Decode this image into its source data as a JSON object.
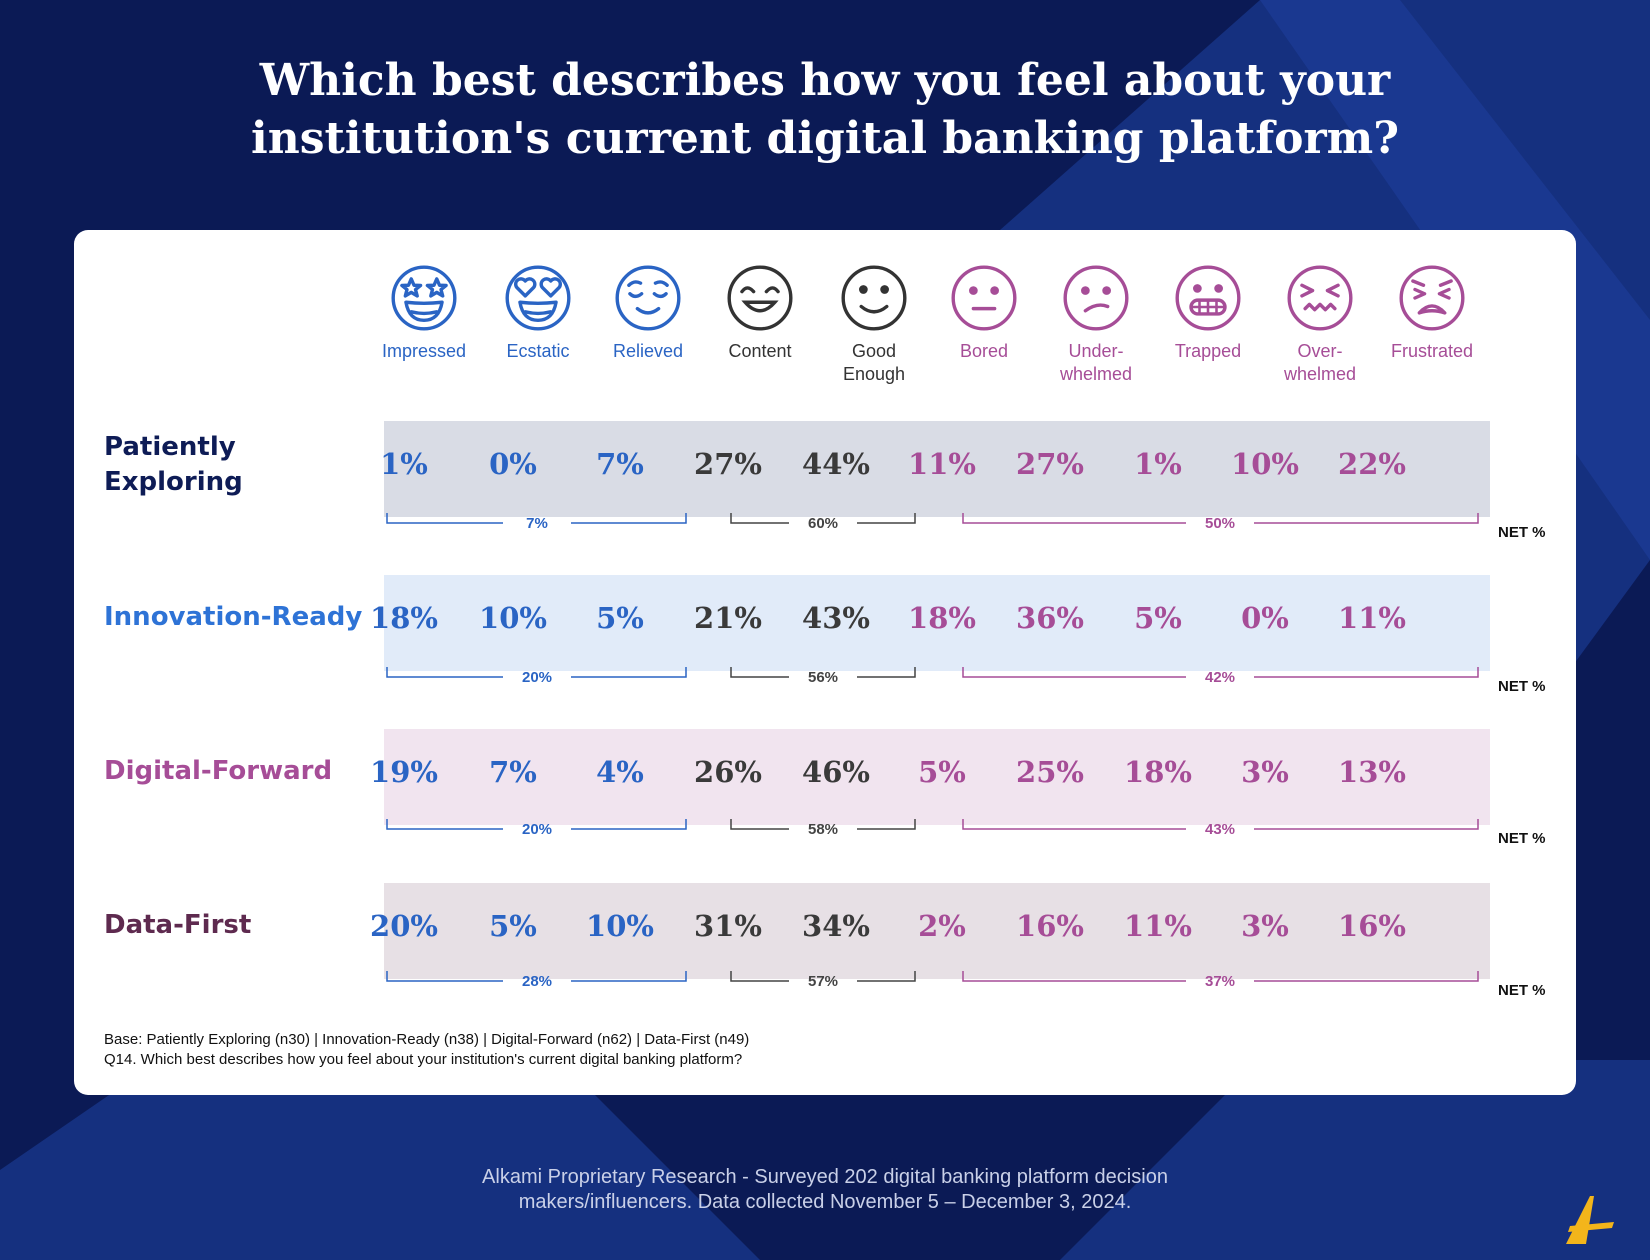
{
  "title_lines": [
    "Which best describes how you feel about your",
    "institution's current digital banking platform?"
  ],
  "colors": {
    "blue": "#2a64c4",
    "dark": "#3a3a3a",
    "purple": "#a64d97",
    "navy": "#0b1a55"
  },
  "emotions": [
    {
      "label": "Impressed",
      "icon": "star-struck-face-icon",
      "group": "blue"
    },
    {
      "label": "Ecstatic",
      "icon": "heart-eyes-face-icon",
      "group": "blue"
    },
    {
      "label": "Relieved",
      "icon": "relieved-face-icon",
      "group": "blue"
    },
    {
      "label": "Content",
      "icon": "content-face-icon",
      "group": "dark"
    },
    {
      "label": "Good\nEnough",
      "icon": "smiling-face-icon",
      "group": "dark"
    },
    {
      "label": "Bored",
      "icon": "neutral-face-icon",
      "group": "purple"
    },
    {
      "label": "Under-\nwhelmed",
      "icon": "confused-face-icon",
      "group": "purple"
    },
    {
      "label": "Trapped",
      "icon": "grimacing-face-icon",
      "group": "purple"
    },
    {
      "label": "Over-\nwhelmed",
      "icon": "confounded-face-icon",
      "group": "purple"
    },
    {
      "label": "Frustrated",
      "icon": "persevering-face-icon",
      "group": "purple"
    }
  ],
  "chart_data": {
    "type": "table",
    "title": "Which best describes how you feel about your institution's current digital banking platform?",
    "categories": [
      "Impressed",
      "Ecstatic",
      "Relieved",
      "Content",
      "Good Enough",
      "Bored",
      "Under-whelmed",
      "Trapped",
      "Over-whelmed",
      "Frustrated"
    ],
    "net_label": "NET %",
    "series": [
      {
        "name": "Patiently\nExploring",
        "name_color": "#0e1c56",
        "band_color": "#d9dce5",
        "values": [
          "1%",
          "0%",
          "7%",
          "27%",
          "44%",
          "11%",
          "27%",
          "1%",
          "10%",
          "22%"
        ],
        "net": [
          "7%",
          "60%",
          "50%"
        ]
      },
      {
        "name": "Innovation-Ready",
        "name_color": "#2e73d6",
        "band_color": "#e1ebf9",
        "values": [
          "18%",
          "10%",
          "5%",
          "21%",
          "43%",
          "18%",
          "36%",
          "5%",
          "0%",
          "11%"
        ],
        "net": [
          "20%",
          "56%",
          "42%"
        ]
      },
      {
        "name": "Digital-Forward",
        "name_color": "#a64d97",
        "band_color": "#f1e4ef",
        "values": [
          "19%",
          "7%",
          "4%",
          "26%",
          "46%",
          "5%",
          "25%",
          "18%",
          "3%",
          "13%"
        ],
        "net": [
          "20%",
          "58%",
          "43%"
        ]
      },
      {
        "name": "Data-First",
        "name_color": "#5e2a4f",
        "band_color": "#e7e0e5",
        "values": [
          "20%",
          "5%",
          "10%",
          "31%",
          "34%",
          "2%",
          "16%",
          "11%",
          "3%",
          "16%"
        ],
        "net": [
          "28%",
          "57%",
          "37%"
        ]
      }
    ]
  },
  "base_lines": [
    "Base: Patiently Exploring (n30) | Innovation-Ready (n38) | Digital-Forward (n62) | Data-First (n49)",
    "Q14. Which best describes how you feel about your institution's current digital banking platform?"
  ],
  "footer_lines": [
    "Alkami Proprietary Research - Surveyed 202 digital banking platform decision",
    "makers/influencers. Data collected November 5 – December 3, 2024."
  ]
}
